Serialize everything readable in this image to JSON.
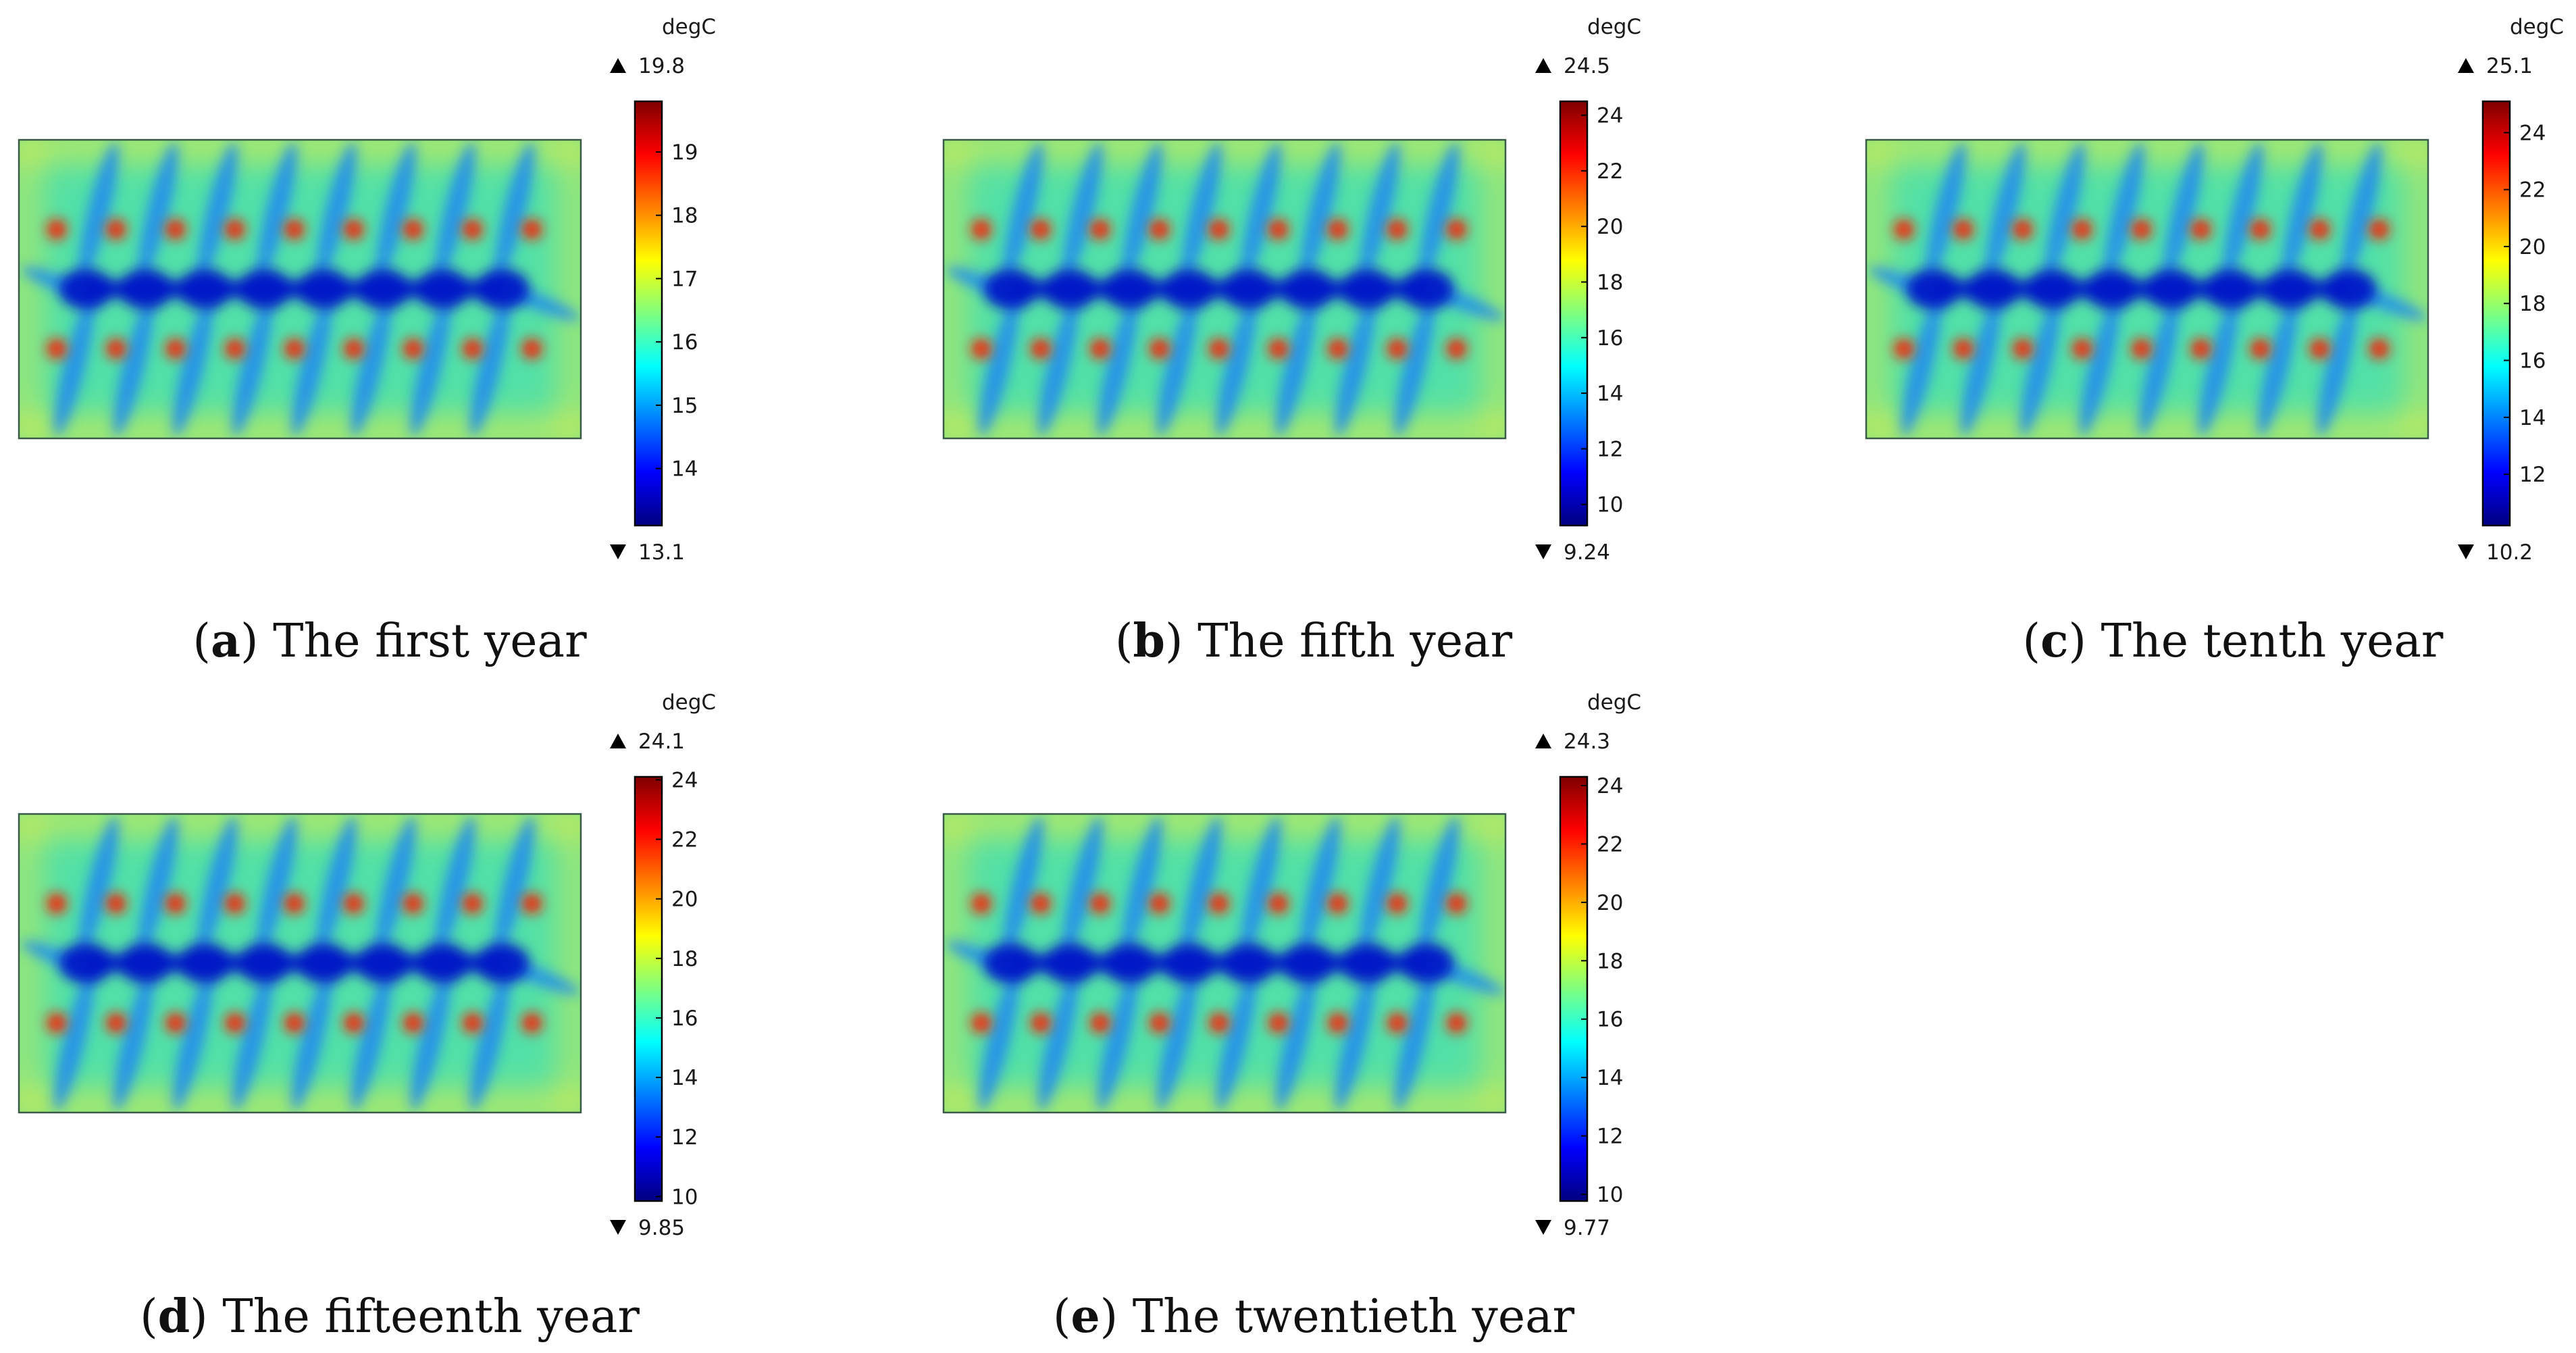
{
  "figure": {
    "colorscale": [
      "#00007f",
      "#0000ff",
      "#007fff",
      "#00ffff",
      "#7fff7f",
      "#ffff00",
      "#ff7f00",
      "#ff0000",
      "#7f0000"
    ],
    "field_colors": {
      "background": "#52e0a8",
      "cold_core": "#0617c8",
      "cold_streak": "#1e88f0",
      "hot_spot": "#ff1500",
      "warm_edge": "#f0ee3c",
      "frame": "#3a5a48"
    }
  },
  "chart_data": [
    {
      "type": "heatmap",
      "id": "a",
      "title": "The first year",
      "caption_letter": "a",
      "unit": "degC",
      "max": 19.8,
      "min": 13.1,
      "max_label": "19.8",
      "min_label": "13.1",
      "ticks": [
        14,
        15,
        16,
        17,
        18,
        19
      ]
    },
    {
      "type": "heatmap",
      "id": "b",
      "title": "The fifth year",
      "caption_letter": "b",
      "unit": "degC",
      "max": 24.5,
      "min": 9.24,
      "max_label": "24.5",
      "min_label": "9.24",
      "ticks": [
        10,
        12,
        14,
        16,
        18,
        20,
        22,
        24
      ]
    },
    {
      "type": "heatmap",
      "id": "c",
      "title": "The tenth year",
      "caption_letter": "c",
      "unit": "degC",
      "max": 25.1,
      "min": 10.2,
      "max_label": "25.1",
      "min_label": "10.2",
      "ticks": [
        12,
        14,
        16,
        18,
        20,
        22,
        24
      ]
    },
    {
      "type": "heatmap",
      "id": "d",
      "title": "The fifteenth year",
      "caption_letter": "d",
      "unit": "degC",
      "max": 24.1,
      "min": 9.85,
      "max_label": "24.1",
      "min_label": "9.85",
      "ticks": [
        10,
        12,
        14,
        16,
        18,
        20,
        22,
        24
      ]
    },
    {
      "type": "heatmap",
      "id": "e",
      "title": "The twentieth year",
      "caption_letter": "e",
      "unit": "degC",
      "max": 24.3,
      "min": 9.77,
      "max_label": "24.3",
      "min_label": "9.77",
      "ticks": [
        10,
        12,
        14,
        16,
        18,
        20,
        22,
        24
      ]
    }
  ]
}
